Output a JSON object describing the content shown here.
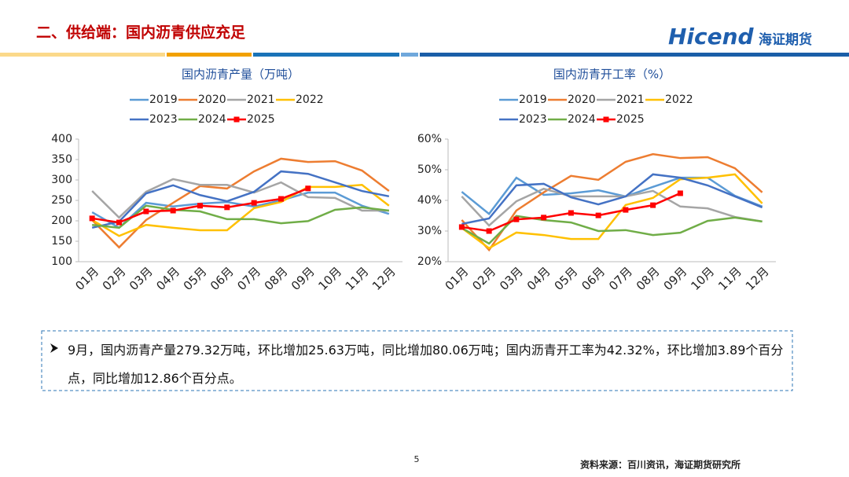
{
  "header": {
    "title": "二、供给端：国内沥青供应充足",
    "brand": "Hicend",
    "brand_cn": "海证期货"
  },
  "chart_data": [
    {
      "type": "line",
      "title": "国内沥青产量（万吨）",
      "categories": [
        "01月",
        "02月",
        "03月",
        "04月",
        "05月",
        "06月",
        "07月",
        "08月",
        "09月",
        "10月",
        "11月",
        "12月"
      ],
      "ylim": [
        100,
        400
      ],
      "yticks": [
        100,
        150,
        200,
        250,
        300,
        350,
        400
      ],
      "series": [
        {
          "name": "2019",
          "color": "#5b9bd5",
          "values": [
            221,
            183,
            244,
            235,
            242,
            246,
            235,
            250,
            269,
            269,
            237,
            217
          ]
        },
        {
          "name": "2020",
          "color": "#ed7d31",
          "values": [
            202,
            135,
            202,
            244,
            285,
            279,
            321,
            352,
            344,
            346,
            323,
            273
          ]
        },
        {
          "name": "2021",
          "color": "#a5a5a5",
          "values": [
            273,
            208,
            271,
            302,
            288,
            288,
            269,
            294,
            258,
            256,
            225,
            225
          ]
        },
        {
          "name": "2022",
          "color": "#ffc000",
          "values": [
            202,
            163,
            190,
            183,
            177,
            177,
            231,
            246,
            283,
            283,
            288,
            237
          ]
        },
        {
          "name": "2023",
          "color": "#4472c4",
          "values": [
            183,
            198,
            267,
            287,
            263,
            248,
            271,
            321,
            315,
            294,
            273,
            260
          ]
        },
        {
          "name": "2024",
          "color": "#70ad47",
          "values": [
            190,
            183,
            237,
            227,
            223,
            204,
            204,
            194,
            199.26,
            227,
            233,
            225
          ]
        },
        {
          "name": "2025",
          "color": "#ff0000",
          "marker": "square",
          "values": [
            206,
            196,
            223,
            225,
            237,
            233,
            244,
            253.69,
            279.32,
            null,
            null,
            null
          ]
        }
      ]
    },
    {
      "type": "line",
      "title": "国内沥青开工率（%）",
      "categories": [
        "01月",
        "02月",
        "03月",
        "04月",
        "05月",
        "06月",
        "07月",
        "08月",
        "09月",
        "10月",
        "11月",
        "12月"
      ],
      "ylim": [
        20,
        60
      ],
      "yticks": [
        {
          "value": 20,
          "label": "20%"
        },
        {
          "value": 30,
          "label": "30%"
        },
        {
          "value": 40,
          "label": "40%"
        },
        {
          "value": 50,
          "label": "50%"
        },
        {
          "value": 60,
          "label": "60%"
        }
      ],
      "series": [
        {
          "name": "2019",
          "color": "#5b9bd5",
          "values": [
            42.8,
            35.6,
            47.4,
            41.8,
            42.3,
            43.3,
            41.3,
            44.4,
            47.4,
            47.4,
            41.5,
            38
          ]
        },
        {
          "name": "2020",
          "color": "#ed7d31",
          "values": [
            33.6,
            23.8,
            36.7,
            42.6,
            48,
            46.7,
            52.6,
            55.1,
            53.8,
            54.1,
            50.5,
            42.6
          ]
        },
        {
          "name": "2021",
          "color": "#a5a5a5",
          "values": [
            41.3,
            31.8,
            39.7,
            43.8,
            41.3,
            41.3,
            41.3,
            43.1,
            38,
            37.4,
            34.6,
            33.1
          ]
        },
        {
          "name": "2022",
          "color": "#ffc000",
          "values": [
            31,
            24.4,
            29.5,
            28.7,
            27.4,
            27.4,
            38.5,
            40.8,
            46.9,
            47.4,
            48.5,
            39
          ]
        },
        {
          "name": "2023",
          "color": "#4472c4",
          "values": [
            32.3,
            34.1,
            44.9,
            45.4,
            41,
            38.7,
            41.3,
            48.5,
            47.4,
            44.9,
            41.3,
            37.7
          ]
        },
        {
          "name": "2024",
          "color": "#70ad47",
          "values": [
            31,
            25.9,
            34.9,
            33.6,
            32.8,
            30,
            30.3,
            28.7,
            29.46,
            33.3,
            34.4,
            33.1
          ]
        },
        {
          "name": "2025",
          "color": "#ff0000",
          "marker": "square",
          "values": [
            31.3,
            30,
            33.8,
            34.4,
            35.9,
            35.1,
            36.9,
            38.43,
            42.32,
            null,
            null,
            null
          ]
        }
      ]
    }
  ],
  "summary": "9月，国内沥青产量279.32万吨，环比增加25.63万吨，同比增加80.06万吨；国内沥青开工率为42.32%，环比增加3.89个百分点，同比增加12.86个百分点。",
  "footer": {
    "page": "5",
    "source": "资料来源：百川资讯，海证期货研究所"
  }
}
